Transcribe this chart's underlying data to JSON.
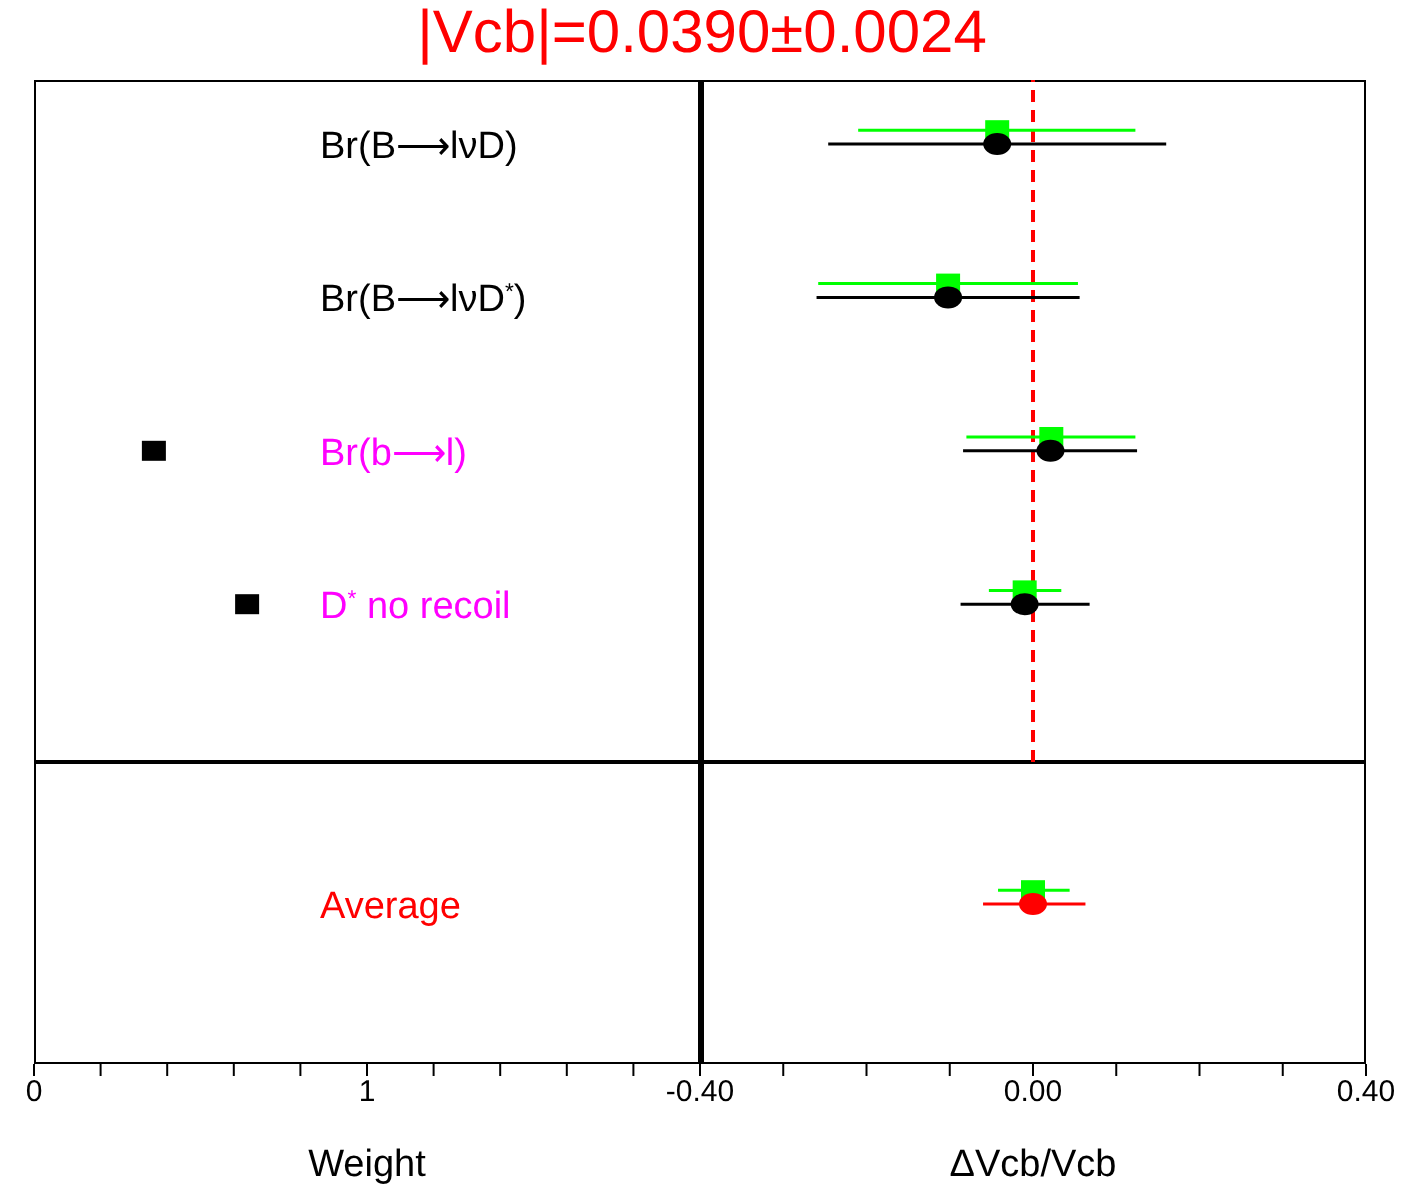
{
  "chart_data": [
    {
      "type": "scatter",
      "title": "|Vcb|=0.0390±0.0024",
      "orientation": "horizontal",
      "categories": [
        "Br(B⟶lνD)",
        "Br(B⟶lνD$^{*}$)",
        "Br(b⟶l)",
        "D$^{*}$ no recoil"
      ],
      "values": [
        null,
        null,
        0.36,
        0.64
      ],
      "color": "#000000",
      "marker": "square",
      "xlim": [
        0,
        2
      ],
      "tick_labels": "y"
    },
    {
      "type": "scatter",
      "orientation": "horizontal",
      "series": [
        {
          "color": "#00ff00",
          "marker": "square",
          "values": [
            -0.043,
            -0.102,
            0.022,
            -0.01
          ],
          "errors": [
            [
              -0.21,
              0.123
            ],
            [
              -0.258,
              0.054
            ],
            [
              -0.08,
              0.123
            ],
            [
              -0.053,
              0.034
            ]
          ]
        },
        {
          "color": "#000000",
          "marker": "circle",
          "values": [
            -0.043,
            -0.102,
            0.021,
            -0.01
          ],
          "errors": [
            [
              -0.246,
              0.16
            ],
            [
              -0.26,
              0.056
            ],
            [
              -0.084,
              0.125
            ],
            [
              -0.087,
              0.068
            ]
          ]
        }
      ],
      "xlim": [
        -0.4,
        0.4
      ],
      "ref_lines": [
        {
          "axis": "x",
          "value": 0,
          "color": "#ff0000",
          "line_style": "dashed"
        }
      ],
      "tick_labels": false
    },
    {
      "type": "scatter",
      "orientation": "horizontal",
      "categories": [
        "Average"
      ],
      "xlim": [
        0,
        2
      ],
      "xticks": [
        0,
        {
          "value": 0.2,
          "label": null
        },
        {
          "value": 0.4,
          "label": null
        },
        {
          "value": 0.6,
          "label": null
        },
        {
          "value": 0.8,
          "label": null
        },
        1,
        {
          "value": 1.2,
          "label": null
        },
        {
          "value": 1.4,
          "label": null
        },
        {
          "value": 1.6,
          "label": null
        },
        {
          "value": 1.8,
          "label": null
        }
      ],
      "xlabel": "Weight"
    },
    {
      "type": "scatter",
      "orientation": "horizontal",
      "series": [
        {
          "color": "#00ff00",
          "marker": "square",
          "values": [
            0.0
          ],
          "errors": [
            [
              -0.042,
              0.044
            ]
          ]
        },
        {
          "color": "#ff0000",
          "marker": "circle",
          "values": [
            0.0
          ],
          "errors": [
            [
              -0.06,
              0.063
            ]
          ]
        }
      ],
      "xlim": [
        -0.4,
        0.4
      ],
      "xticks": [
        {
          "value": -0.4,
          "label": "-0.40"
        },
        {
          "value": -0.3,
          "label": null
        },
        {
          "value": -0.2,
          "label": null
        },
        {
          "value": -0.1,
          "label": null
        },
        {
          "value": 0,
          "label": "0.00"
        },
        {
          "value": 0.1,
          "label": null
        },
        {
          "value": 0.2,
          "label": null
        },
        {
          "value": 0.3,
          "label": null
        },
        {
          "value": 0.4,
          "label": "0.40"
        }
      ],
      "xlabel": "ΔVcb/Vcb",
      "tick_labels": "x"
    }
  ]
}
